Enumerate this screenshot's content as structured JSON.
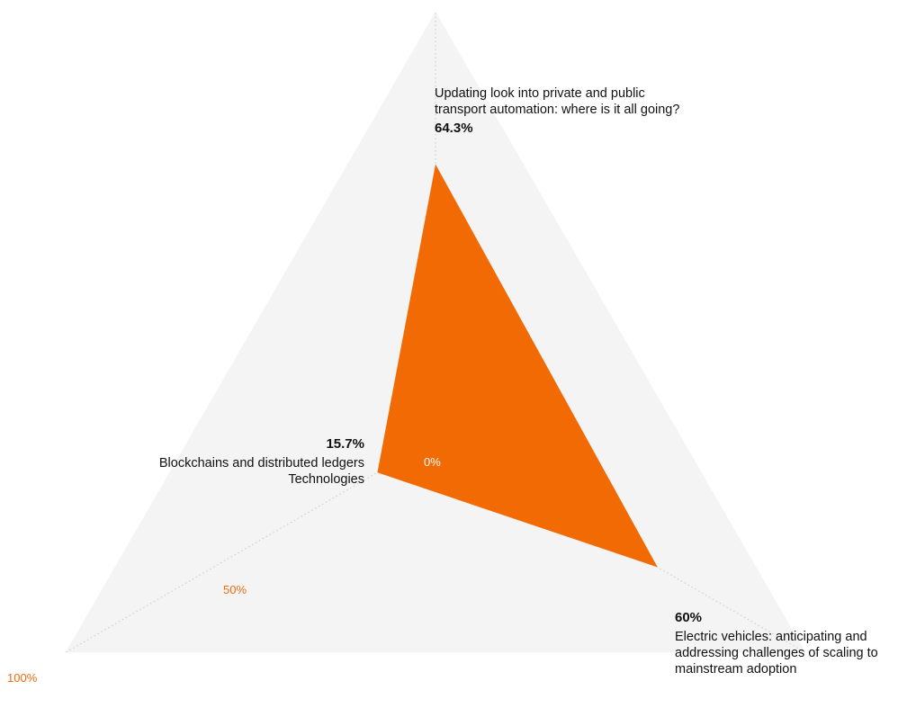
{
  "chart_data": {
    "type": "radar",
    "axes": [
      {
        "label": "Updating look into private and public transport automation: where is it all going?",
        "value": 64.3,
        "value_label": "64.3%"
      },
      {
        "label": "Electric vehicles: anticipating and addressing challenges of scaling to mainstream adoption",
        "value": 60,
        "value_label": "60%"
      },
      {
        "label": "Blockchains and distributed ledgers Technologies",
        "value": 15.7,
        "value_label": "15.7%"
      }
    ],
    "scale": {
      "min": 0,
      "max": 100
    },
    "tick_labels": [
      "0%",
      "50%",
      "100%"
    ],
    "colors": {
      "fill": "#f26a04",
      "background": "#f4f4f4",
      "tick": "#f26c0d",
      "guide": "#c9c9c9"
    }
  }
}
